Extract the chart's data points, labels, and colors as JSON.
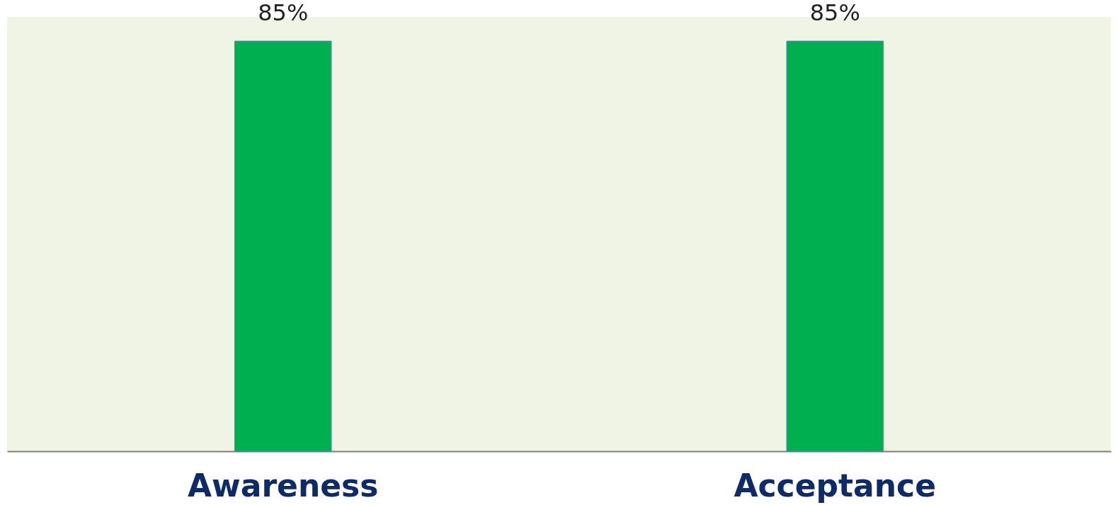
{
  "chart_data": {
    "type": "bar",
    "categories": [
      "Awareness",
      "Acceptance"
    ],
    "values": [
      85,
      85
    ],
    "value_labels": [
      "85%",
      "85%"
    ],
    "color": "#00b050",
    "tick_labels": "x"
  }
}
